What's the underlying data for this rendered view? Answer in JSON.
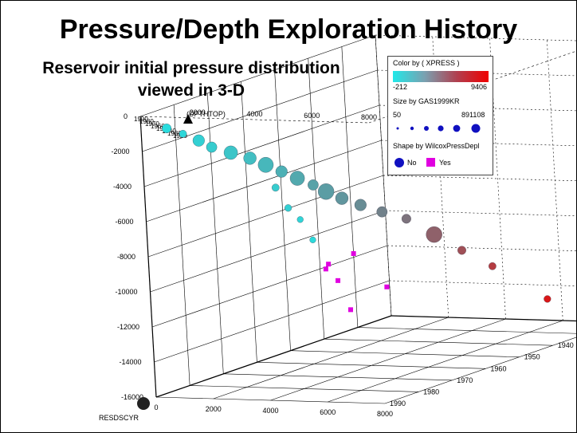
{
  "title": "Pressure/Depth Exploration History",
  "subtitle_line1": "Reservoir initial pressure distribution",
  "subtitle_line2": "viewed in 3-D",
  "legend": {
    "color_title": "Color by ( XPRESS )",
    "color_min": "-212",
    "color_max": "9406",
    "size_title": "Size by GAS1999KR",
    "size_min": "50",
    "size_max": "891108",
    "shape_title": "Shape by WilcoxPressDepl",
    "shape_no": "No",
    "shape_yes": "Yes",
    "colors": {
      "low": "#21e8e8",
      "high": "#f00000",
      "yes_shape": "#e000e0"
    }
  },
  "chart_data": {
    "type": "scatter",
    "title": "Pressure/Depth Exploration History",
    "axes": {
      "x_label": "RESDSCYR",
      "y_label": "(DPTHTOP)",
      "z_label": "XPRESS )",
      "x_ticks": [
        "1920",
        "1930",
        "1940",
        "1950",
        "1960",
        "1970",
        "1980",
        "1990"
      ],
      "y_ticks": [
        "0",
        "-2000",
        "-4000",
        "-6000",
        "-8000",
        "-10000",
        "-12000",
        "-14000",
        "-16000"
      ],
      "y_ticks_right": [
        "0",
        "-2000",
        "-4000",
        "-6000",
        "-8000",
        "-10000",
        "-12000",
        "-14000",
        "-16000"
      ],
      "z_ticks_top": [
        "2000",
        "4000",
        "6000",
        "8000"
      ],
      "z_ticks_bottom": [
        "0",
        "2000",
        "4000",
        "6000",
        "8000"
      ],
      "x_ticks_left": [
        "1990",
        "1980",
        "1970",
        "1960",
        "1950",
        "1940",
        "1930",
        "1920"
      ]
    },
    "points": [
      {
        "year": 1985,
        "depth": -1000,
        "pressure": 300,
        "gas": 200000,
        "depl": "No"
      },
      {
        "year": 1982,
        "depth": -1500,
        "pressure": 500,
        "gas": 100000,
        "depl": "No"
      },
      {
        "year": 1980,
        "depth": -2000,
        "pressure": 800,
        "gas": 400000,
        "depl": "No"
      },
      {
        "year": 1978,
        "depth": -2500,
        "pressure": 1000,
        "gas": 300000,
        "depl": "No"
      },
      {
        "year": 1975,
        "depth": -3000,
        "pressure": 1300,
        "gas": 600000,
        "depl": "No"
      },
      {
        "year": 1972,
        "depth": -3500,
        "pressure": 1600,
        "gas": 500000,
        "depl": "No"
      },
      {
        "year": 1970,
        "depth": -4000,
        "pressure": 1900,
        "gas": 800000,
        "depl": "No"
      },
      {
        "year": 1968,
        "depth": -4500,
        "pressure": 2200,
        "gas": 400000,
        "depl": "No"
      },
      {
        "year": 1966,
        "depth": -5000,
        "pressure": 2500,
        "gas": 700000,
        "depl": "No"
      },
      {
        "year": 1964,
        "depth": -5500,
        "pressure": 2800,
        "gas": 300000,
        "depl": "No"
      },
      {
        "year": 1962,
        "depth": -6000,
        "pressure": 3000,
        "gas": 891108,
        "depl": "No"
      },
      {
        "year": 1960,
        "depth": -6500,
        "pressure": 3300,
        "gas": 500000,
        "depl": "No"
      },
      {
        "year": 1958,
        "depth": -7000,
        "pressure": 3700,
        "gas": 400000,
        "depl": "No"
      },
      {
        "year": 1956,
        "depth": -7500,
        "pressure": 4200,
        "gas": 300000,
        "depl": "No"
      },
      {
        "year": 1954,
        "depth": -8000,
        "pressure": 4800,
        "gas": 200000,
        "depl": "No"
      },
      {
        "year": 1952,
        "depth": -9000,
        "pressure": 5500,
        "gas": 891108,
        "depl": "No"
      },
      {
        "year": 1950,
        "depth": -10000,
        "pressure": 6200,
        "gas": 150000,
        "depl": "No"
      },
      {
        "year": 1948,
        "depth": -11000,
        "pressure": 7000,
        "gas": 100000,
        "depl": "No"
      },
      {
        "year": 1945,
        "depth": -13000,
        "pressure": 8500,
        "gas": 80000,
        "depl": "No"
      },
      {
        "year": 1942,
        "depth": -15000,
        "pressure": 9406,
        "gas": 891108,
        "depl": "No"
      },
      {
        "year": 1960,
        "depth": -6000,
        "pressure": 1000,
        "gas": 100000,
        "depl": "No"
      },
      {
        "year": 1955,
        "depth": -7500,
        "pressure": 800,
        "gas": 80000,
        "depl": "No"
      },
      {
        "year": 1950,
        "depth": -8500,
        "pressure": 600,
        "gas": 50000,
        "depl": "No"
      },
      {
        "year": 1945,
        "depth": -10000,
        "pressure": 400,
        "gas": 50000,
        "depl": "No"
      },
      {
        "year": 1940,
        "depth": -12000,
        "pressure": 200,
        "gas": 50000,
        "depl": "Yes"
      },
      {
        "year": 1935,
        "depth": -13000,
        "pressure": 0,
        "gas": 50000,
        "depl": "Yes"
      },
      {
        "year": 1950,
        "depth": -11000,
        "pressure": 1500,
        "gas": 50000,
        "depl": "Yes"
      },
      {
        "year": 1955,
        "depth": -10000,
        "pressure": 3000,
        "gas": 50000,
        "depl": "Yes"
      },
      {
        "year": 1930,
        "depth": -15000,
        "pressure": -212,
        "gas": 50000,
        "depl": "Yes"
      },
      {
        "year": 1925,
        "depth": -14000,
        "pressure": 500,
        "gas": 50000,
        "depl": "Yes"
      }
    ]
  }
}
